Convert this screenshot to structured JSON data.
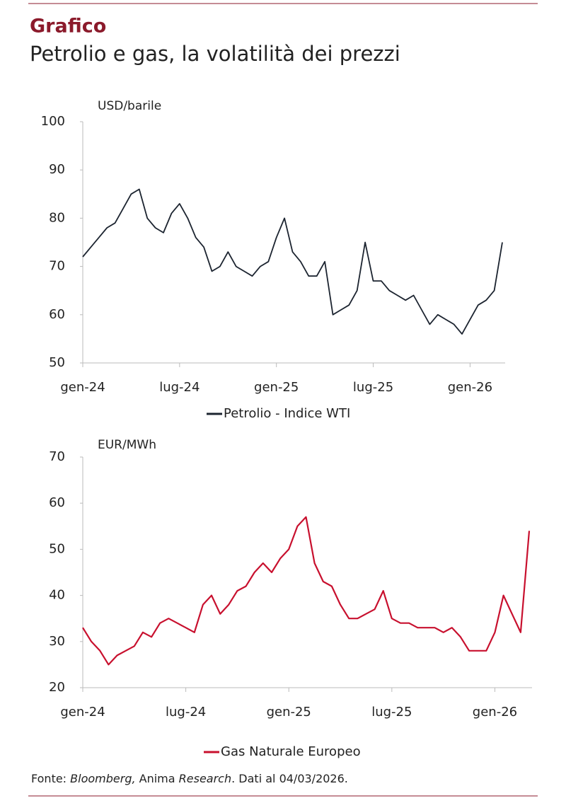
{
  "header": {
    "title": "Grafico",
    "subtitle": "Petrolio e gas, la volatilità dei prezzi"
  },
  "chart_data": [
    {
      "type": "line",
      "y_label": "USD/barile",
      "categories": [
        "gen-24",
        null,
        null,
        null,
        null,
        null,
        null,
        null,
        null,
        null,
        null,
        null,
        "lug-24",
        null,
        null,
        null,
        null,
        null,
        null,
        null,
        null,
        null,
        null,
        null,
        "gen-25",
        null,
        null,
        null,
        null,
        null,
        null,
        null,
        null,
        null,
        null,
        null,
        "lug-25",
        null,
        null,
        null,
        null,
        null,
        null,
        null,
        null,
        null,
        null,
        null,
        "gen-26",
        null,
        null,
        null,
        null
      ],
      "series": [
        {
          "name": "Petrolio - Indice WTI",
          "color": "#1c2430",
          "values": [
            72,
            74,
            76,
            78,
            79,
            82,
            85,
            86,
            80,
            78,
            77,
            81,
            83,
            80,
            76,
            74,
            69,
            70,
            73,
            70,
            69,
            68,
            70,
            71,
            76,
            80,
            73,
            71,
            68,
            68,
            71,
            60,
            61,
            62,
            65,
            75,
            67,
            67,
            65,
            64,
            63,
            64,
            61,
            58,
            60,
            59,
            58,
            56,
            59,
            62,
            63,
            65,
            75
          ]
        }
      ],
      "ylim": [
        50,
        100
      ],
      "yticks": [
        50,
        60,
        70,
        80,
        90,
        100
      ]
    },
    {
      "type": "line",
      "y_label": "EUR/MWh",
      "categories": [
        "gen-24",
        null,
        null,
        null,
        null,
        null,
        null,
        null,
        null,
        null,
        null,
        null,
        "lug-24",
        null,
        null,
        null,
        null,
        null,
        null,
        null,
        null,
        null,
        null,
        null,
        "gen-25",
        null,
        null,
        null,
        null,
        null,
        null,
        null,
        null,
        null,
        null,
        null,
        "lug-25",
        null,
        null,
        null,
        null,
        null,
        null,
        null,
        null,
        null,
        null,
        null,
        "gen-26",
        null,
        null,
        null,
        null
      ],
      "series": [
        {
          "name": "Gas Naturale Europeo",
          "color": "#c8102e",
          "values": [
            33,
            30,
            28,
            25,
            27,
            28,
            29,
            32,
            31,
            34,
            35,
            34,
            33,
            32,
            38,
            40,
            36,
            38,
            41,
            42,
            45,
            47,
            45,
            48,
            50,
            55,
            57,
            47,
            43,
            42,
            38,
            35,
            35,
            36,
            37,
            41,
            35,
            34,
            34,
            33,
            33,
            33,
            32,
            33,
            31,
            28,
            28,
            28,
            32,
            40,
            36,
            32,
            54
          ]
        }
      ],
      "ylim": [
        20,
        70
      ],
      "yticks": [
        20,
        30,
        40,
        50,
        60,
        70
      ]
    }
  ],
  "source": {
    "parts": [
      "Fonte: ",
      "Bloomberg,",
      " Anima ",
      "Research",
      ". Dati al 04/03/2026."
    ]
  }
}
